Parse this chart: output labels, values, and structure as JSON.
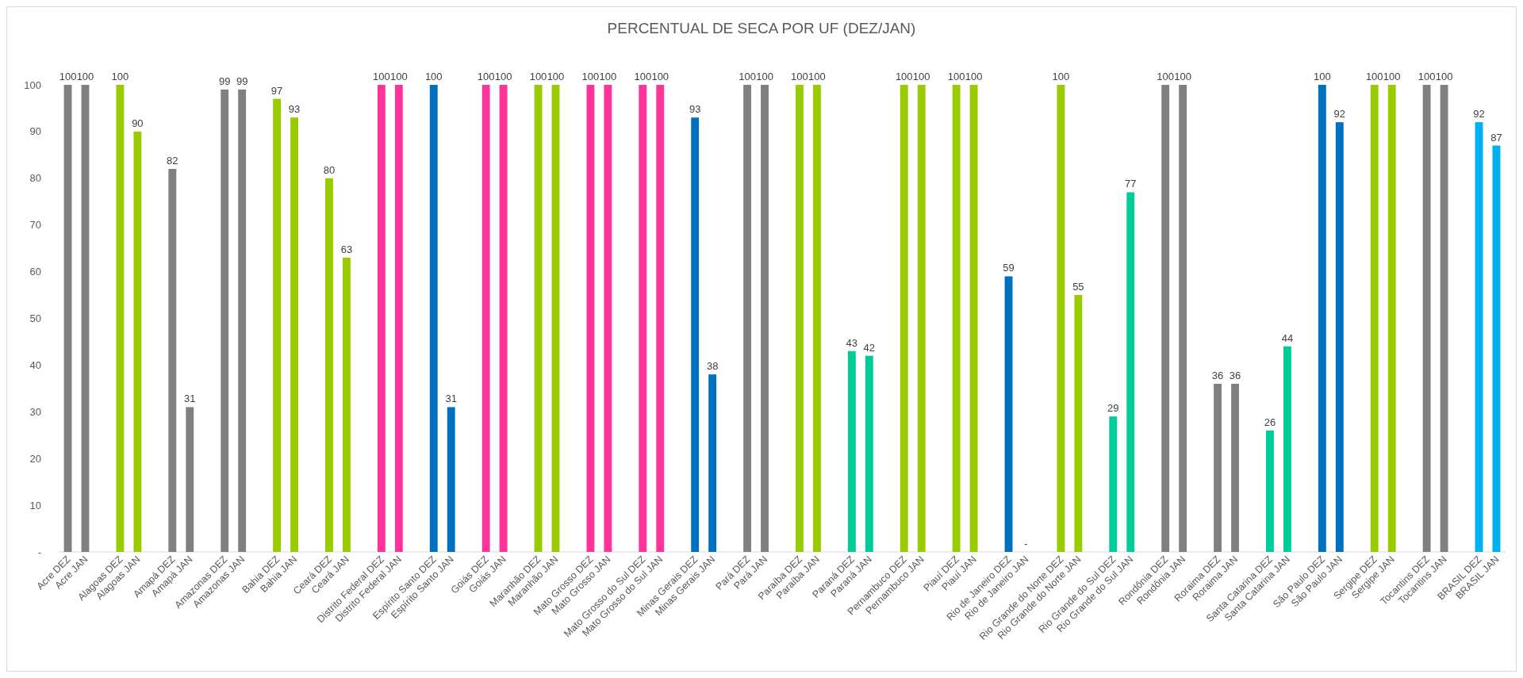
{
  "chart_data": {
    "type": "bar",
    "title": "PERCENTUAL DE SECA POR UF (DEZ/JAN)",
    "categories": [
      "Acre DEZ",
      "Acre JAN",
      null,
      "Alagoas DEZ",
      "Alagoas JAN",
      null,
      "Amapá DEZ",
      "Amapá JAN",
      null,
      "Amazonas DEZ",
      "Amazonas JAN",
      null,
      "Bahia DEZ",
      "Bahia JAN",
      null,
      "Ceará DEZ",
      "Ceará JAN",
      null,
      "Distrito Federal DEZ",
      "Distrito Federal JAN",
      null,
      "Espírito Santo DEZ",
      "Espírito Santo JAN",
      null,
      "Goiás DEZ",
      "Goiás JAN",
      null,
      "Maranhão DEZ",
      "Maranhão JAN",
      null,
      "Mato Grosso DEZ",
      "Mato Grosso JAN",
      null,
      "Mato Grosso do Sul DEZ",
      "Mato Grosso do Sul JAN",
      null,
      "Minas Gerais DEZ",
      "Minas Gerais JAN",
      null,
      "Pará DEZ",
      "Pará JAN",
      null,
      "Paraíba DEZ",
      "Paraíba JAN",
      null,
      "Paraná DEZ",
      "Paraná JAN",
      null,
      "Pernambuco DEZ",
      "Pernambuco JAN",
      null,
      "Piauí DEZ",
      "Piauí JAN",
      null,
      "Rio de Janeiro DEZ",
      "Rio de Janeiro JAN",
      null,
      "Rio Grande do Norte DEZ",
      "Rio Grande do Norte JAN",
      null,
      "Rio Grande do Sul DEZ",
      "Rio Grande do Sul JAN",
      null,
      "Rondônia DEZ",
      "Rondônia JAN",
      null,
      "Roraima DEZ",
      "Roraima JAN",
      null,
      "Santa Catarina DEZ",
      "Santa Catarina JAN",
      null,
      "São Paulo DEZ",
      "São Paulo JAN",
      null,
      "Sergipe DEZ",
      "Sergipe JAN",
      null,
      "Tocantins DEZ",
      "Tocantins JAN",
      null,
      "BRASIL DEZ",
      "BRASIL JAN"
    ],
    "values": [
      100,
      100,
      null,
      100,
      90,
      null,
      82,
      31,
      null,
      99,
      99,
      null,
      97,
      93,
      null,
      80,
      63,
      null,
      100,
      100,
      null,
      100,
      31,
      null,
      100,
      100,
      null,
      100,
      100,
      null,
      100,
      100,
      null,
      100,
      100,
      null,
      93,
      38,
      null,
      100,
      100,
      null,
      100,
      100,
      null,
      43,
      42,
      null,
      100,
      100,
      null,
      100,
      100,
      null,
      59,
      0,
      null,
      100,
      55,
      null,
      29,
      77,
      null,
      100,
      100,
      null,
      36,
      36,
      null,
      26,
      44,
      null,
      100,
      92,
      null,
      100,
      100,
      null,
      100,
      100,
      null,
      92,
      87
    ],
    "value_labels": [
      "100",
      "100",
      null,
      "100",
      "90",
      null,
      "82",
      "31",
      null,
      "99",
      "99",
      null,
      "97",
      "93",
      null,
      "80",
      "63",
      null,
      "100",
      "100",
      null,
      "100",
      "31",
      null,
      "100",
      "100",
      null,
      "100",
      "100",
      null,
      "100",
      "100",
      null,
      "100",
      "100",
      null,
      "93",
      "38",
      null,
      "100",
      "100",
      null,
      "100",
      "100",
      null,
      "43",
      "42",
      null,
      "100",
      "100",
      null,
      "100",
      "100",
      null,
      "59",
      "-",
      null,
      "100",
      "55",
      null,
      "29",
      "77",
      null,
      "100",
      "100",
      null,
      "36",
      "36",
      null,
      "26",
      "44",
      null,
      "100",
      "92",
      null,
      "100",
      "100",
      null,
      "100",
      "100",
      null,
      "92",
      "87"
    ],
    "colors": [
      "#808080",
      "#808080",
      null,
      "#99cc00",
      "#99cc00",
      null,
      "#808080",
      "#808080",
      null,
      "#808080",
      "#808080",
      null,
      "#99cc00",
      "#99cc00",
      null,
      "#99cc00",
      "#99cc00",
      null,
      "#ff3399",
      "#ff3399",
      null,
      "#0070c0",
      "#0070c0",
      null,
      "#ff3399",
      "#ff3399",
      null,
      "#99cc00",
      "#99cc00",
      null,
      "#ff3399",
      "#ff3399",
      null,
      "#ff3399",
      "#ff3399",
      null,
      "#0070c0",
      "#0070c0",
      null,
      "#808080",
      "#808080",
      null,
      "#99cc00",
      "#99cc00",
      null,
      "#00cc99",
      "#00cc99",
      null,
      "#99cc00",
      "#99cc00",
      null,
      "#99cc00",
      "#99cc00",
      null,
      "#0070c0",
      "#0070c0",
      null,
      "#99cc00",
      "#99cc00",
      null,
      "#00cc99",
      "#00cc99",
      null,
      "#808080",
      "#808080",
      null,
      "#808080",
      "#808080",
      null,
      "#00cc99",
      "#00cc99",
      null,
      "#0070c0",
      "#0070c0",
      null,
      "#99cc00",
      "#99cc00",
      null,
      "#808080",
      "#808080",
      null,
      "#00b0f0",
      "#00b0f0"
    ],
    "ylim": [
      0,
      100
    ],
    "yticks": [
      {
        "value": 0,
        "label": "-"
      },
      10,
      20,
      30,
      40,
      50,
      60,
      70,
      80,
      90,
      100
    ]
  }
}
